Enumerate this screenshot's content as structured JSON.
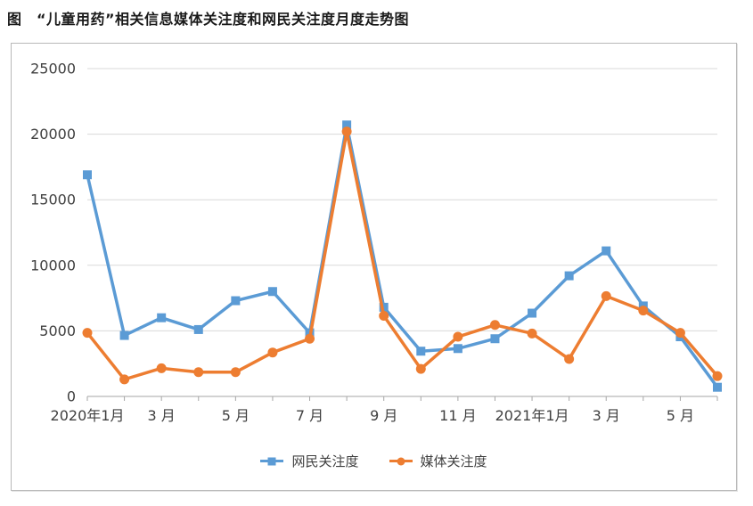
{
  "figure_title": "图　“儿童用药”相关信息媒体关注度和网民关注度月度走势图",
  "chart_data": {
    "type": "line",
    "title": "图　“儿童用药”相关信息媒体关注度和网民关注度月度走势图",
    "categories": [
      "2020年1月",
      "2020年2月",
      "2020年3月",
      "2020年4月",
      "2020年5月",
      "2020年6月",
      "2020年7月",
      "2020年8月",
      "2020年9月",
      "2020年10月",
      "2020年11月",
      "2020年12月",
      "2021年1月",
      "2021年2月",
      "2021年3月",
      "2021年4月",
      "2021年5月",
      "2021年6月"
    ],
    "x_tick_labels": [
      "2020年1月",
      "3 月",
      "5 月",
      "7 月",
      "9 月",
      "11 月",
      "2021年1月",
      "3 月",
      "5 月"
    ],
    "x_tick_label_every": 2,
    "series": [
      {
        "name": "网民关注度",
        "color": "#5B9BD5",
        "marker": "square",
        "values": [
          16900,
          4650,
          6000,
          5100,
          7300,
          8000,
          4850,
          20700,
          6800,
          3450,
          3650,
          4400,
          6350,
          9200,
          11100,
          6900,
          4550,
          700
        ]
      },
      {
        "name": "媒体关注度",
        "color": "#ED7D31",
        "marker": "circle",
        "values": [
          4850,
          1300,
          2150,
          1850,
          1850,
          3350,
          4400,
          20200,
          6150,
          2100,
          4550,
          5450,
          4800,
          2850,
          7650,
          6550,
          4850,
          1550
        ]
      }
    ],
    "y_axis": {
      "min": 0,
      "max": 25000,
      "step": 5000,
      "tick_labels": [
        "0",
        "5000",
        "10000",
        "15000",
        "20000",
        "25000"
      ]
    },
    "xlabel": "",
    "ylabel": "",
    "grid": true,
    "legend_position": "bottom",
    "colors": {
      "gridline": "#d9d9d9",
      "axis": "#a6a6a6",
      "tick_text": "#404040"
    }
  }
}
